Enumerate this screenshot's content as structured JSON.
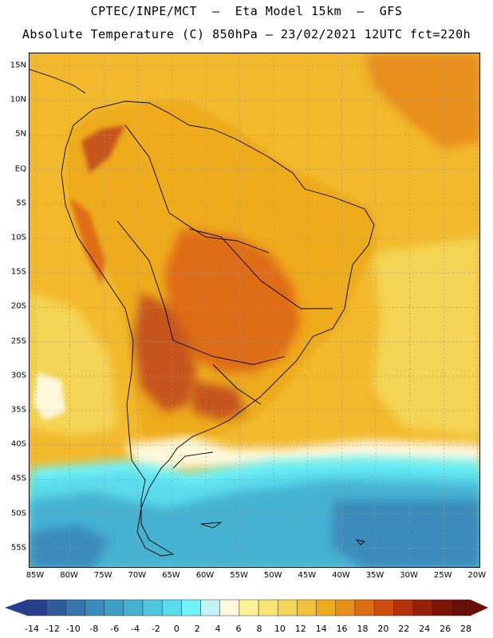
{
  "header": {
    "line1": "CPTEC/INPE/MCT  –  Eta Model 15km  –  GFS",
    "line2": "Absolute Temperature (C) 850hPa – 23/02/2021 12UTC fct=220h"
  },
  "axes": {
    "lat_labels": [
      "15N",
      "10N",
      "5N",
      "EQ",
      "5S",
      "10S",
      "15S",
      "20S",
      "25S",
      "30S",
      "35S",
      "40S",
      "45S",
      "50S",
      "55S"
    ],
    "lon_labels": [
      "85W",
      "80W",
      "75W",
      "70W",
      "65W",
      "60W",
      "55W",
      "50W",
      "45W",
      "40W",
      "35W",
      "30W",
      "25W",
      "20W"
    ]
  },
  "colorbar": {
    "ticks": [
      "-14",
      "-12",
      "-10",
      "-8",
      "-6",
      "-4",
      "-2",
      "0",
      "2",
      "4",
      "6",
      "8",
      "10",
      "12",
      "14",
      "16",
      "18",
      "20",
      "22",
      "24",
      "26",
      "28"
    ],
    "colors": [
      "#283e8e",
      "#2f5a9e",
      "#3576b1",
      "#3a8cbc",
      "#3e9fc6",
      "#45b2d2",
      "#4ec6e0",
      "#5bdcec",
      "#70f2f8",
      "#c5f2f8",
      "#fff8dc",
      "#fdf29a",
      "#f9e672",
      "#f5d555",
      "#f1c13b",
      "#eeab1f",
      "#e88f1a",
      "#df6c12",
      "#ce4c0d",
      "#b4330a",
      "#952108",
      "#7a1606",
      "#6a0e0a"
    ],
    "low_arrow_color": "#283e8e",
    "high_arrow_color": "#6a0e0a"
  },
  "map_colors": {
    "ocean_background": "#f2b92c",
    "deep_cold": "#3a8cbc",
    "cold": "#45b2d2",
    "cool": "#5bdcec",
    "near_zero": "#70f2f8",
    "pale": "#fff8dc",
    "warm_land": "#eeab1f",
    "hot": "#e88f1a",
    "hotter": "#df6c12",
    "hottest": "#c5541a"
  }
}
